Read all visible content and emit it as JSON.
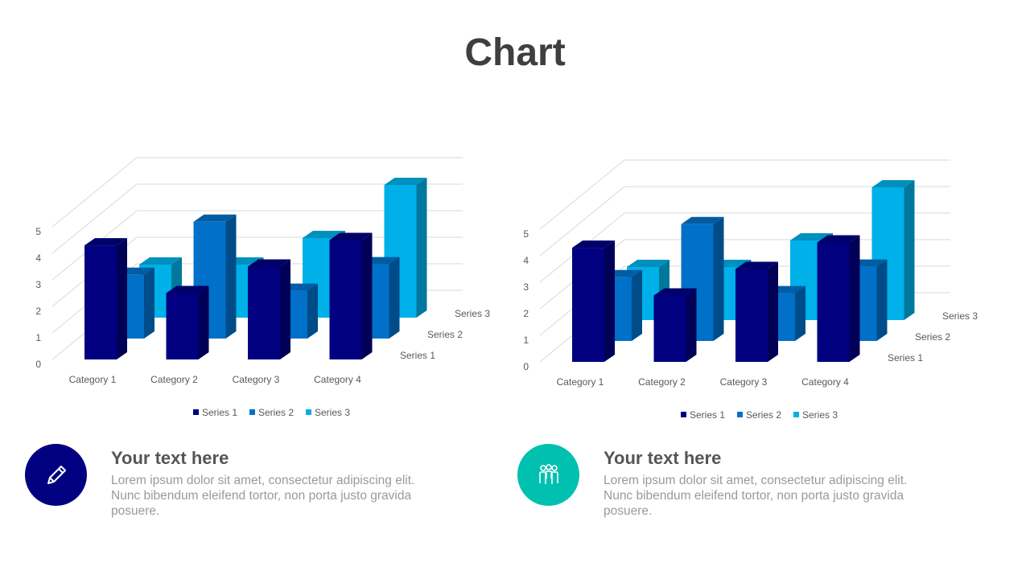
{
  "page": {
    "title": "Chart"
  },
  "colors": {
    "series_1": "#000080",
    "series_2": "#0070C8",
    "series_3": "#00B0E8",
    "feature_1_circle": "#000080",
    "feature_2_circle": "#00C0B0"
  },
  "chart_data": [
    {
      "type": "bar",
      "subtype": "3d-column",
      "title": "",
      "categories": [
        "Category 1",
        "Category 2",
        "Category 3",
        "Category 4"
      ],
      "series": [
        {
          "name": "Series 1",
          "values": [
            4.3,
            2.5,
            3.5,
            4.5
          ]
        },
        {
          "name": "Series 2",
          "values": [
            2.4,
            4.4,
            1.8,
            2.8
          ]
        },
        {
          "name": "Series 3",
          "values": [
            2,
            2,
            3,
            5
          ]
        }
      ],
      "y_ticks": [
        "0",
        "1",
        "2",
        "3",
        "4",
        "5"
      ],
      "ylim": [
        0,
        5
      ],
      "legend": "bottom",
      "grid": true
    },
    {
      "type": "bar",
      "subtype": "3d-column",
      "title": "",
      "categories": [
        "Category 1",
        "Category 2",
        "Category 3",
        "Category 4"
      ],
      "series": [
        {
          "name": "Series 1",
          "values": [
            4.3,
            2.5,
            3.5,
            4.5
          ]
        },
        {
          "name": "Series 2",
          "values": [
            2.4,
            4.4,
            1.8,
            2.8
          ]
        },
        {
          "name": "Series 3",
          "values": [
            2,
            2,
            3,
            5
          ]
        }
      ],
      "y_ticks": [
        "0",
        "1",
        "2",
        "3",
        "4",
        "5"
      ],
      "ylim": [
        0,
        5
      ],
      "legend": "bottom",
      "grid": true
    }
  ],
  "features": [
    {
      "icon": "pencil-icon",
      "heading": "Your text here",
      "body": "Lorem ipsum dolor sit amet, consectetur adipiscing elit. Nunc bibendum eleifend tortor, non porta justo gravida posuere."
    },
    {
      "icon": "team-icon",
      "heading": "Your text here",
      "body": "Lorem ipsum dolor sit amet, consectetur adipiscing elit. Nunc bibendum eleifend tortor, non porta justo gravida posuere."
    }
  ]
}
